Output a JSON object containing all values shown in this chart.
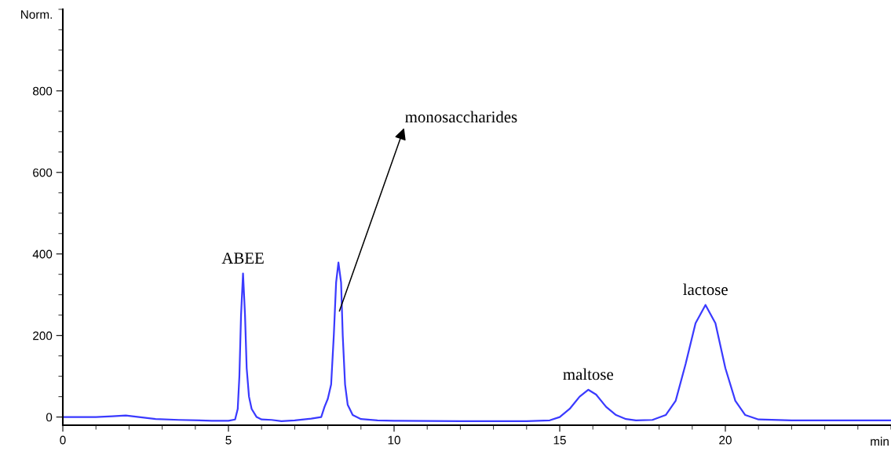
{
  "chart_data": {
    "type": "line",
    "ylabel": "Norm.",
    "xlabel": "min",
    "x": [
      0,
      1,
      1.5,
      1.9,
      2.3,
      2.8,
      3.5,
      4.5,
      5.0,
      5.2,
      5.28,
      5.33,
      5.38,
      5.44,
      5.5,
      5.55,
      5.62,
      5.7,
      5.85,
      6.0,
      6.3,
      6.6,
      7.0,
      7.5,
      7.8,
      7.9,
      8.0,
      8.1,
      8.18,
      8.25,
      8.32,
      8.4,
      8.45,
      8.52,
      8.6,
      8.75,
      9.0,
      9.5,
      10,
      12,
      14,
      14.7,
      15.0,
      15.3,
      15.6,
      15.86,
      16.1,
      16.4,
      16.7,
      17.0,
      17.3,
      17.8,
      18.2,
      18.5,
      18.8,
      19.1,
      19.4,
      19.7,
      20.0,
      20.3,
      20.6,
      21,
      22,
      25
    ],
    "series": [
      {
        "color": "#3a3aff",
        "values": [
          0,
          0,
          2,
          4,
          0,
          -5,
          -7,
          -9,
          -9,
          -6,
          20,
          100,
          250,
          352,
          250,
          120,
          50,
          20,
          0,
          -6,
          -7,
          -10,
          -8,
          -4,
          0,
          25,
          45,
          80,
          200,
          330,
          379,
          330,
          200,
          80,
          30,
          5,
          -5,
          -8,
          -9,
          -10,
          -10,
          -8,
          0,
          20,
          50,
          67,
          55,
          25,
          5,
          -5,
          -8,
          -7,
          5,
          40,
          130,
          230,
          275,
          230,
          120,
          40,
          5,
          -6,
          -8,
          -8
        ]
      }
    ],
    "xlim": [
      0,
      25
    ],
    "ylim": [
      -20,
      1000
    ],
    "xticks": [
      0,
      5,
      10,
      15,
      20
    ],
    "yticks": [
      0,
      200,
      400,
      600,
      800
    ],
    "grid": false,
    "marker": "none",
    "line_style": "solid",
    "annotations": [
      {
        "text": "ABEE",
        "x": 5.44,
        "y": 352
      },
      {
        "text": "monosaccharides",
        "x": 8.35,
        "y": 260
      },
      {
        "text": "maltose",
        "x": 15.86,
        "y": 67
      },
      {
        "text": "lactose",
        "x": 19.4,
        "y": 275
      }
    ]
  }
}
